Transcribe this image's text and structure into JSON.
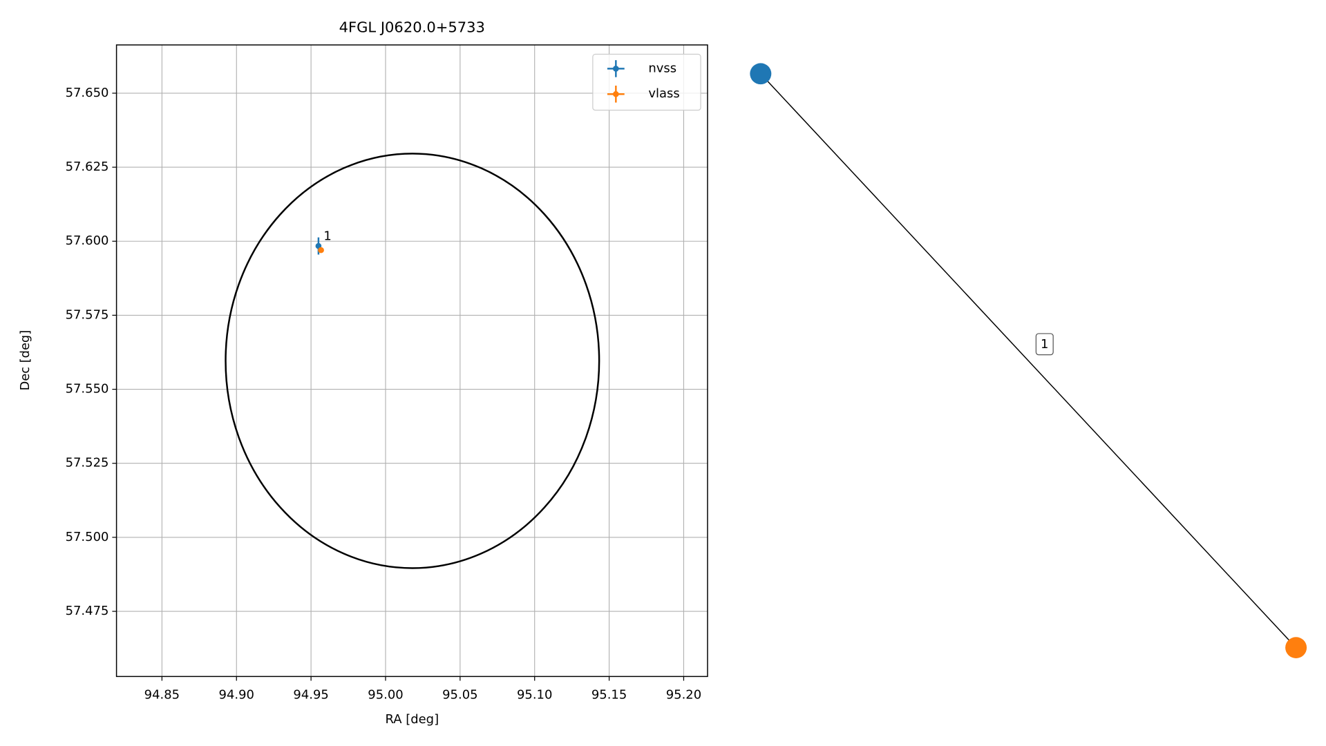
{
  "chart_data": [
    {
      "type": "scatter",
      "title": "4FGL J0620.0+5733",
      "xlabel": "RA [deg]",
      "ylabel": "Dec [deg]",
      "series": [
        {
          "name": "nvss",
          "color": "#1f77b4",
          "x": [
            94.955
          ],
          "values": [
            57.5984
          ],
          "xerr": [
            0.0008
          ],
          "yerr": [
            0.0029
          ]
        },
        {
          "name": "vlass",
          "color": "#ff7f0e",
          "x": [
            94.9567
          ],
          "values": [
            57.597
          ],
          "xerr": [
            0.0003
          ],
          "yerr": [
            0.0005
          ]
        }
      ],
      "annotations": [
        {
          "text": "1",
          "x": 94.955,
          "y": 57.5984
        }
      ],
      "ellipse": {
        "center": [
          95.018,
          57.5596
        ],
        "semi_axes": [
          0.1253,
          0.07
        ],
        "color": "#000000"
      },
      "xlim": [
        94.8195,
        95.216
      ],
      "xticks": [
        {
          "value": 94.85,
          "label": "94.85"
        },
        {
          "value": 94.9,
          "label": "94.90"
        },
        {
          "value": 94.95,
          "label": "94.95"
        },
        {
          "value": 95.0,
          "label": "95.00"
        },
        {
          "value": 95.05,
          "label": "95.05"
        },
        {
          "value": 95.1,
          "label": "95.10"
        },
        {
          "value": 95.15,
          "label": "95.15"
        },
        {
          "value": 95.2,
          "label": "95.20"
        }
      ],
      "ylim": [
        57.453,
        57.6663
      ],
      "yticks": [
        {
          "value": 57.475,
          "label": "57.475"
        },
        {
          "value": 57.5,
          "label": "57.500"
        },
        {
          "value": 57.525,
          "label": "57.525"
        },
        {
          "value": 57.55,
          "label": "57.550"
        },
        {
          "value": 57.575,
          "label": "57.575"
        },
        {
          "value": 57.6,
          "label": "57.600"
        },
        {
          "value": 57.625,
          "label": "57.625"
        },
        {
          "value": 57.65,
          "label": "57.650"
        }
      ],
      "grid": true,
      "legend": "upper right"
    },
    {
      "type": "network",
      "nodes": [
        {
          "color": "#1f77b4"
        },
        {
          "color": "#ff7f0e"
        }
      ],
      "edges": [
        {
          "source": 0,
          "target": 1,
          "label": "1"
        }
      ]
    }
  ]
}
